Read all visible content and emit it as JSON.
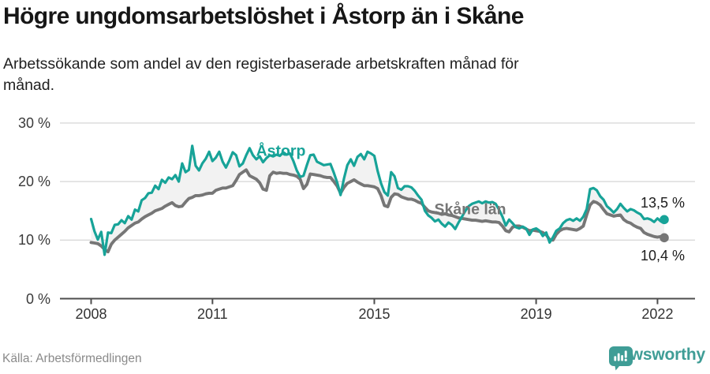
{
  "header": {
    "title": "Högre ungdomsarbetslöshet i Åstorp än i Skåne",
    "subtitle_line1": "Arbetssökande som andel av den registerbaserade arbetskraften månad för",
    "subtitle_line2": "månad."
  },
  "chart_data": {
    "type": "line",
    "unit": "%",
    "x_start": "2008-01",
    "x_end": "2022-03",
    "points_per_year": 12,
    "grid": true,
    "ylim": [
      0,
      30
    ],
    "y_ticks": [
      {
        "value": 30,
        "label": "30 %"
      },
      {
        "value": 20,
        "label": "20 %"
      },
      {
        "value": 10,
        "label": "10 %"
      },
      {
        "value": 0,
        "label": "0 %"
      }
    ],
    "x_ticks": [
      {
        "year": 2008,
        "label": "2008"
      },
      {
        "year": 2011,
        "label": "2011"
      },
      {
        "year": 2015,
        "label": "2015"
      },
      {
        "year": 2019,
        "label": "2019"
      },
      {
        "year": 2022,
        "label": "2022"
      }
    ],
    "series": [
      {
        "name": "Åstorp",
        "color": "#17A398",
        "end_label": "13,5 %",
        "end_value": 13.5,
        "values": [
          13.6,
          11.5,
          10.1,
          11.4,
          7.5,
          11.3,
          11.2,
          12.6,
          12.7,
          13.4,
          12.9,
          14.1,
          13.5,
          15.2,
          14.9,
          16.8,
          17.2,
          18.0,
          18.1,
          19.3,
          18.7,
          20.3,
          19.8,
          20.7,
          20.4,
          21.1,
          20.0,
          23.1,
          21.6,
          22.0,
          26.1,
          22.7,
          21.9,
          23.1,
          23.9,
          25.1,
          23.5,
          24.1,
          25.1,
          23.4,
          22.4,
          23.6,
          25.0,
          24.5,
          22.6,
          23.1,
          24.5,
          25.7,
          24.5,
          23.8,
          24.3,
          23.3,
          24.0,
          24.5,
          24.3,
          24.6,
          24.4,
          25.0,
          24.6,
          24.8,
          23.5,
          21.9,
          20.8,
          21.0,
          22.8,
          24.5,
          24.6,
          23.4,
          23.1,
          22.8,
          22.9,
          23.0,
          21.5,
          19.8,
          17.7,
          20.5,
          22.8,
          23.8,
          22.7,
          24.2,
          24.7,
          23.8,
          25.1,
          24.8,
          24.4,
          21.8,
          19.7,
          18.2,
          17.6,
          21.6,
          20.9,
          18.9,
          18.6,
          19.2,
          19.2,
          19.0,
          18.4,
          17.6,
          16.9,
          15.0,
          14.2,
          13.8,
          13.2,
          13.5,
          12.8,
          12.3,
          13.0,
          12.6,
          11.9,
          13.0,
          14.0,
          15.0,
          15.8,
          16.2,
          16.4,
          16.6,
          16.3,
          16.6,
          16.4,
          16.5,
          16.2,
          15.2,
          14.0,
          12.5,
          13.5,
          12.9,
          12.2,
          12.0,
          12.3,
          12.0,
          10.9,
          11.8,
          12.0,
          11.6,
          10.7,
          11.3,
          9.6,
          10.5,
          11.6,
          12.0,
          12.9,
          13.4,
          13.6,
          13.3,
          13.7,
          13.3,
          14.0,
          15.3,
          18.7,
          18.9,
          18.5,
          17.5,
          16.9,
          15.8,
          15.3,
          14.7,
          15.3,
          16.2,
          15.5,
          14.9,
          15.3,
          15.1,
          14.7,
          14.4,
          13.6,
          13.7,
          13.5,
          13.1,
          13.7,
          13.2,
          13.5
        ]
      },
      {
        "name": "Skåne län",
        "color": "#767676",
        "end_label": "10,4 %",
        "end_value": 10.4,
        "values": [
          9.6,
          9.5,
          9.4,
          9.0,
          8.4,
          8.0,
          9.3,
          10.0,
          10.5,
          11.0,
          11.5,
          12.1,
          12.5,
          12.9,
          13.1,
          13.6,
          14.0,
          14.3,
          14.6,
          15.0,
          15.2,
          15.4,
          15.8,
          16.1,
          16.4,
          15.9,
          15.7,
          15.8,
          16.5,
          17.1,
          17.3,
          17.6,
          17.6,
          17.7,
          17.9,
          18.0,
          18.0,
          18.5,
          18.7,
          18.9,
          18.9,
          19.1,
          19.3,
          20.2,
          21.2,
          21.6,
          22.0,
          21.0,
          20.7,
          20.4,
          19.8,
          18.7,
          18.5,
          21.0,
          21.6,
          21.4,
          21.5,
          21.4,
          21.4,
          21.2,
          21.1,
          20.9,
          20.4,
          18.8,
          19.5,
          21.3,
          21.2,
          21.1,
          21.0,
          20.8,
          20.7,
          20.7,
          20.0,
          19.2,
          18.0,
          19.0,
          19.7,
          20.0,
          20.3,
          19.9,
          19.6,
          19.3,
          19.3,
          19.2,
          19.1,
          18.8,
          17.6,
          15.9,
          15.7,
          17.3,
          17.9,
          17.8,
          17.4,
          17.2,
          17.0,
          17.0,
          16.8,
          16.5,
          16.3,
          15.6,
          15.0,
          14.8,
          14.7,
          14.6,
          14.4,
          14.5,
          14.3,
          14.2,
          14.0,
          13.8,
          13.7,
          13.6,
          13.5,
          13.4,
          13.4,
          13.3,
          13.2,
          13.3,
          13.2,
          13.1,
          13.1,
          13.0,
          12.4,
          11.6,
          11.4,
          12.2,
          12.4,
          12.4,
          12.2,
          11.9,
          11.6,
          11.7,
          11.6,
          11.5,
          11.3,
          10.9,
          10.1,
          10.0,
          11.0,
          11.6,
          11.9,
          12.0,
          11.9,
          11.8,
          11.7,
          12.0,
          12.4,
          14.3,
          16.0,
          16.6,
          16.4,
          16.0,
          15.2,
          14.5,
          14.3,
          14.1,
          14.2,
          14.3,
          13.5,
          13.1,
          12.9,
          12.5,
          12.2,
          12.0,
          11.3,
          11.0,
          10.8,
          10.6,
          10.5,
          10.6,
          10.4
        ]
      }
    ],
    "colors": {
      "grid": "#d9d9d9",
      "axis": "#4d4d4d",
      "between_fill": "#f2f2f2"
    }
  },
  "footer": {
    "source": "Källa: Arbetsförmedlingen",
    "brand": "Newsworthy",
    "brand_color": "#3F9D96"
  }
}
